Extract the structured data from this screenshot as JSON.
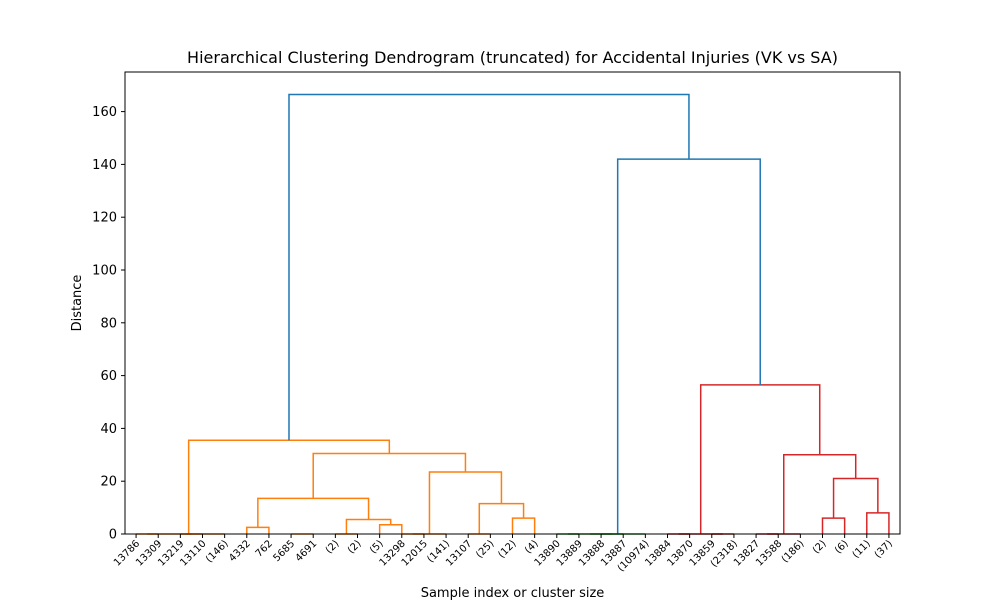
{
  "chart_data": {
    "type": "dendrogram",
    "title": "Hierarchical Clustering Dendrogram (truncated) for Accidental Injuries (VK vs SA)",
    "xlabel": "Sample index or cluster size",
    "ylabel": "Distance",
    "ylim": [
      0,
      175
    ],
    "yticks": [
      0,
      20,
      40,
      60,
      80,
      100,
      120,
      140,
      160
    ],
    "grid": false,
    "colors": {
      "orange": "#ff7f0e",
      "green": "#2ca02c",
      "red": "#d62728",
      "blue": "#1f77b4"
    },
    "leaves": [
      "13786",
      "13309",
      "13219",
      "13110",
      "(146)",
      "4332",
      "762",
      "5685",
      "4691",
      "(2)",
      "(2)",
      "(5)",
      "13298",
      "12015",
      "(141)",
      "13107",
      "(25)",
      "(12)",
      "(4)",
      "13890",
      "13889",
      "13888",
      "13887",
      "(10974)",
      "13884",
      "13870",
      "13859",
      "(2318)",
      "13827",
      "13588",
      "(186)",
      "(2)",
      "(6)",
      "(11)",
      "(37)"
    ],
    "links": [
      {
        "left": 0,
        "right": 1,
        "height": 0.0,
        "color": "orange"
      },
      {
        "left": 2,
        "right": 3,
        "height": 0.0,
        "color": "orange"
      },
      {
        "left": 35,
        "right": 4,
        "height": 0.0,
        "color": "orange"
      },
      {
        "left": 36,
        "right": 37,
        "height": 0.0,
        "color": "orange"
      },
      {
        "left": 5,
        "right": 6,
        "height": 2.5,
        "color": "orange"
      },
      {
        "left": 7,
        "right": 8,
        "height": 0.0,
        "color": "orange"
      },
      {
        "left": 9,
        "right": 10,
        "height": 0.0,
        "color": "orange"
      },
      {
        "left": 11,
        "right": 12,
        "height": 3.5,
        "color": "orange"
      },
      {
        "left": 41,
        "right": 42,
        "height": 5.5,
        "color": "orange"
      },
      {
        "left": 39,
        "right": 43,
        "height": 13.5,
        "color": "orange"
      },
      {
        "left": 12,
        "right": 13,
        "height": 0.0,
        "color": "orange"
      },
      {
        "left": 45,
        "right": 14,
        "height": 0.0,
        "color": "orange"
      },
      {
        "left": 15,
        "right": 16,
        "height": 0.0,
        "color": "orange"
      },
      {
        "left": 17,
        "right": 18,
        "height": 6.0,
        "color": "orange"
      },
      {
        "left": 47,
        "right": 48,
        "height": 11.5,
        "color": "orange"
      },
      {
        "left": 46,
        "right": 49,
        "height": 23.5,
        "color": "orange"
      },
      {
        "left": 44,
        "right": 50,
        "height": 30.5,
        "color": "orange"
      },
      {
        "left": 38,
        "right": 51,
        "height": 35.5,
        "color": "orange"
      },
      {
        "left": 19,
        "right": 20,
        "height": 0.0,
        "color": "green"
      },
      {
        "left": 21,
        "right": 22,
        "height": 0.0,
        "color": "green"
      },
      {
        "left": 53,
        "right": 54,
        "height": 0.0,
        "color": "green"
      },
      {
        "left": 55,
        "right": 23,
        "height": 0.0,
        "color": "green"
      },
      {
        "left": 24,
        "right": 25,
        "height": 0.0,
        "color": "red"
      },
      {
        "left": 26,
        "right": 27,
        "height": 0.0,
        "color": "red"
      },
      {
        "left": 57,
        "right": 58,
        "height": 0.0,
        "color": "red"
      },
      {
        "left": 28,
        "right": 29,
        "height": 0.0,
        "color": "red"
      },
      {
        "left": 60,
        "right": 30,
        "height": 0.0,
        "color": "red"
      },
      {
        "left": 31,
        "right": 32,
        "height": 6.0,
        "color": "red"
      },
      {
        "left": 33,
        "right": 34,
        "height": 8.0,
        "color": "red"
      },
      {
        "left": 62,
        "right": 63,
        "height": 21.0,
        "color": "red"
      },
      {
        "left": 61,
        "right": 64,
        "height": 30.0,
        "color": "red"
      },
      {
        "left": 59,
        "right": 65,
        "height": 56.5,
        "color": "red"
      },
      {
        "left": 56,
        "right": 66,
        "height": 142.0,
        "color": "blue"
      },
      {
        "left": 52,
        "right": 67,
        "height": 166.5,
        "color": "blue"
      }
    ]
  }
}
